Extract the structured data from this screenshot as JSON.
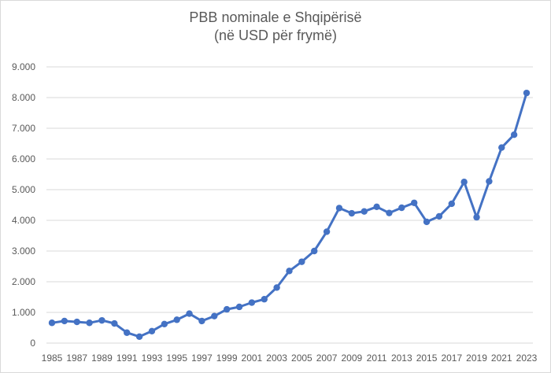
{
  "chart_data": {
    "type": "line",
    "title": "PBB nominale e Shqipërisë",
    "subtitle": "(në USD për frymë)",
    "xlabel": "",
    "ylabel": "",
    "ylim": [
      0,
      9000
    ],
    "yticks": [
      0,
      1000,
      2000,
      3000,
      4000,
      5000,
      6000,
      7000,
      8000,
      9000
    ],
    "ytick_labels": [
      "0",
      "1.000",
      "2.000",
      "3.000",
      "4.000",
      "5.000",
      "6.000",
      "7.000",
      "8.000",
      "9.000"
    ],
    "xticks": [
      "1985",
      "1987",
      "1989",
      "1991",
      "1993",
      "1995",
      "1997",
      "1999",
      "2001",
      "2003",
      "2005",
      "2007",
      "2009",
      "2011",
      "2013",
      "2015",
      "2017",
      "2019",
      "2021",
      "2023"
    ],
    "grid": "horizontal",
    "legend": "none",
    "color": "#4472c4",
    "series": [
      {
        "x": [
          1985,
          1986,
          1987,
          1988,
          1989,
          1990,
          1991,
          1992,
          1993,
          1994,
          1995,
          1996,
          1997,
          1998,
          1999,
          2000,
          2001,
          2002,
          2003,
          2004,
          2005,
          2006,
          2007,
          2008,
          2009,
          2010,
          2011,
          2012,
          2013,
          2014,
          2015,
          2016,
          2017,
          2018,
          2019,
          2020,
          2021,
          2022,
          2023
        ],
        "values": [
          660,
          720,
          690,
          660,
          740,
          640,
          340,
          210,
          390,
          620,
          760,
          960,
          720,
          880,
          1100,
          1180,
          1320,
          1430,
          1810,
          2350,
          2650,
          3000,
          3630,
          4400,
          4230,
          4290,
          4440,
          4240,
          4410,
          4570,
          3950,
          4130,
          4540,
          5250,
          4100,
          5270,
          6370,
          6790,
          8150
        ]
      }
    ]
  }
}
